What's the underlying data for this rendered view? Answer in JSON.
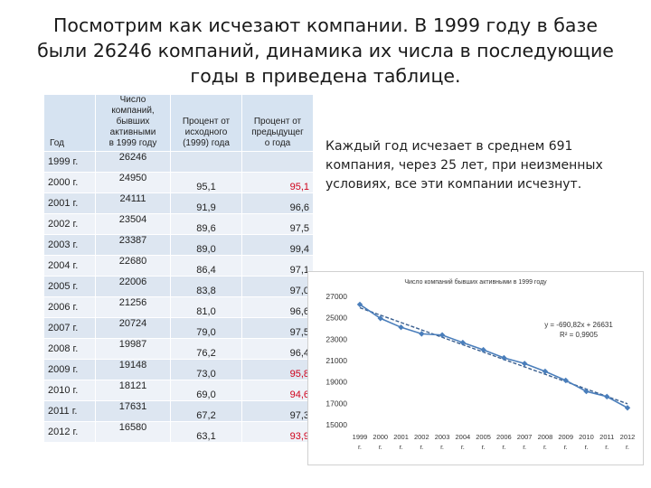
{
  "title_lines": [
    "Посмотрим как исчезают компании. В 1999 году в базе",
    "были 26246 компаний, динамика их числа в последующие",
    "годы в приведена таблице."
  ],
  "note_lines": [
    "Каждый год исчезает в среднем 691",
    "компания, через 25 лет, при неизменных",
    "условиях, все эти компании исчезнут."
  ],
  "table": {
    "headers": {
      "year": "Год",
      "count": [
        "Число",
        "компаний,",
        "бывших",
        "активными",
        "в 1999 году"
      ],
      "pct_base": [
        "Процент от",
        "исходного",
        "(1999) года"
      ],
      "pct_prev": [
        "Процент от",
        "предыдущег",
        "о года"
      ]
    },
    "rows": [
      {
        "year": "1999 г.",
        "count": "26246",
        "pct_base": "",
        "pct_prev": "",
        "prev_red": false
      },
      {
        "year": "2000 г.",
        "count": "24950",
        "pct_base": "95,1",
        "pct_prev": "95,1",
        "prev_red": true
      },
      {
        "year": "2001 г.",
        "count": "24111",
        "pct_base": "91,9",
        "pct_prev": "96,6",
        "prev_red": false
      },
      {
        "year": "2002 г.",
        "count": "23504",
        "pct_base": "89,6",
        "pct_prev": "97,5",
        "prev_red": false
      },
      {
        "year": "2003 г.",
        "count": "23387",
        "pct_base": "89,0",
        "pct_prev": "99,4",
        "prev_red": false
      },
      {
        "year": "2004 г.",
        "count": "22680",
        "pct_base": "86,4",
        "pct_prev": "97,1",
        "prev_red": false
      },
      {
        "year": "2005 г.",
        "count": "22006",
        "pct_base": "83,8",
        "pct_prev": "97,0",
        "prev_red": false
      },
      {
        "year": "2006 г.",
        "count": "21256",
        "pct_base": "81,0",
        "pct_prev": "96,6",
        "prev_red": false
      },
      {
        "year": "2007 г.",
        "count": "20724",
        "pct_base": "79,0",
        "pct_prev": "97,5",
        "prev_red": false
      },
      {
        "year": "2008 г.",
        "count": "19987",
        "pct_base": "76,2",
        "pct_prev": "96,4",
        "prev_red": false
      },
      {
        "year": "2009 г.",
        "count": "19148",
        "pct_base": "73,0",
        "pct_prev": "95,8",
        "prev_red": true
      },
      {
        "year": "2010 г.",
        "count": "18121",
        "pct_base": "69,0",
        "pct_prev": "94,6",
        "prev_red": true
      },
      {
        "year": "2011 г.",
        "count": "17631",
        "pct_base": "67,2",
        "pct_prev": "97,3",
        "prev_red": false
      },
      {
        "year": "2012 г.",
        "count": "16580",
        "pct_base": "63,1",
        "pct_prev": "93,9",
        "prev_red": true
      }
    ]
  },
  "colors": {
    "red": "#d0021b",
    "header_bg": "#d6e3f1",
    "row_odd": "#dde6f1",
    "row_even": "#eef2f8",
    "series_line": "#4a7ebb",
    "trend_line": "#3a5f8f"
  },
  "chart_data": {
    "type": "line",
    "title": "Число компаний бывших активными в 1999 году",
    "categories": [
      "1999 г.",
      "2000 г.",
      "2001 г.",
      "2002 г.",
      "2003 г.",
      "2004 г.",
      "2005 г.",
      "2006 г.",
      "2007 г.",
      "2008 г.",
      "2009 г.",
      "2010 г.",
      "2011 г.",
      "2012 г."
    ],
    "category_labels_top": [
      "1999",
      "2000",
      "2001",
      "2002",
      "2003",
      "2004",
      "2005",
      "2006",
      "2007",
      "2008",
      "2009",
      "2010",
      "2011",
      "2012"
    ],
    "category_labels_bottom": [
      "г.",
      "г.",
      "г.",
      "г.",
      "г.",
      "г.",
      "г.",
      "г.",
      "г.",
      "г.",
      "г.",
      "г.",
      "г.",
      "г."
    ],
    "values": [
      26246,
      24950,
      24111,
      23504,
      23387,
      22680,
      22006,
      21256,
      20724,
      19987,
      19148,
      18121,
      17631,
      16580
    ],
    "ylim": [
      15000,
      27000
    ],
    "yticks": [
      15000,
      17000,
      19000,
      21000,
      23000,
      25000,
      27000
    ],
    "ytick_labels": [
      "15000",
      "17000",
      "19000",
      "21000",
      "23000",
      "25000",
      "27000"
    ],
    "trendline": {
      "slope": -690.82,
      "intercept": 26631,
      "equation": "y = -690,82x + 26631",
      "r2": "R² = 0,9905"
    },
    "grid": false,
    "legend": "none"
  }
}
